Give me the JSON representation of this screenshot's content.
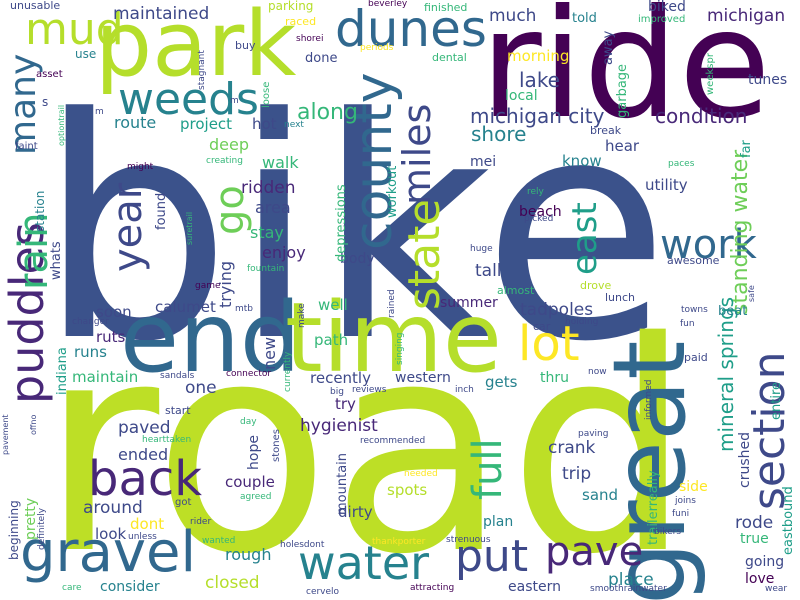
{
  "palette": {
    "dark_purple": "#440154",
    "purple": "#482878",
    "indigo": "#3e4989",
    "blue": "#31688e",
    "teal_blue": "#26828e",
    "teal": "#1f9e89",
    "green": "#35b779",
    "light_green": "#6ece58",
    "lime": "#b5de2b",
    "yellow": "#fde725"
  },
  "words": [
    "bike",
    "road",
    "ride",
    "end",
    "time",
    "great",
    "park",
    "dunes",
    "puddles",
    "county",
    "gravel",
    "water",
    "pave",
    "back",
    "weeds",
    "state",
    "miles",
    "section",
    "lot",
    "put",
    "full",
    "work",
    "year",
    "rain",
    "mud",
    "many",
    "east",
    "go",
    "michigan city",
    "standing water",
    "mineral springs",
    "condition",
    "maintained",
    "michigan",
    "along",
    "shore",
    "lake",
    "local",
    "morning",
    "much",
    "route",
    "project",
    "hot",
    "deep",
    "walk",
    "ridden",
    "area",
    "stay",
    "enjoy",
    "body",
    "trying",
    "well",
    "summer",
    "tadpoles",
    "tall",
    "beach",
    "utility",
    "hear",
    "know",
    "mei",
    "calumet",
    "soon",
    "ruts",
    "runs",
    "maintain",
    "new",
    "path",
    "recently",
    "western",
    "gets",
    "thru",
    "one",
    "try",
    "hygienist",
    "paved",
    "ended",
    "around",
    "dont",
    "crank",
    "trip",
    "spots",
    "sand",
    "couple",
    "hope",
    "look",
    "rough",
    "closed",
    "mountain",
    "dirty",
    "plan",
    "beginning",
    "pretty",
    "indiana",
    "consider",
    "eastern",
    "place",
    "rode",
    "love",
    "going",
    "true",
    "crushed",
    "eastbound",
    "trailerreally",
    "side",
    "tunes",
    "far",
    "beat",
    "entire",
    "weekspr",
    "improved",
    "biked",
    "told",
    "away",
    "garbage",
    "break",
    "station",
    "whats",
    "workout",
    "depressions",
    "found",
    "unusable",
    "use",
    "asset",
    "parking",
    "done",
    "raced",
    "finished",
    "dental",
    "beverley",
    "shorei",
    "periods",
    "stagnant",
    "buy",
    "loose",
    "next",
    "creating",
    "might",
    "suretrail",
    "optiontrail",
    "faint",
    "fountain",
    "game",
    "mtb",
    "changer",
    "make",
    "currently",
    "connector",
    "sandals",
    "big",
    "reviews",
    "inch",
    "informed",
    "now",
    "start",
    "hearttaken",
    "recommended",
    "day",
    "stones",
    "agreed",
    "got",
    "rider",
    "wanted",
    "unless",
    "holesdont",
    "thankporter",
    "needed",
    "strenuous",
    "funi",
    "joins",
    "bikers",
    "attracting",
    "smoothrainwater",
    "wear",
    "care",
    "cervelo",
    "pavement",
    "offno",
    "definitely",
    "rained",
    "singing",
    "huge",
    "almost",
    "drove",
    "lunch",
    "holding",
    "fun",
    "paid",
    "towns",
    "safe",
    "paces",
    "rely",
    "picked",
    "awesome",
    "car",
    "paving",
    "s",
    "m",
    "m"
  ]
}
